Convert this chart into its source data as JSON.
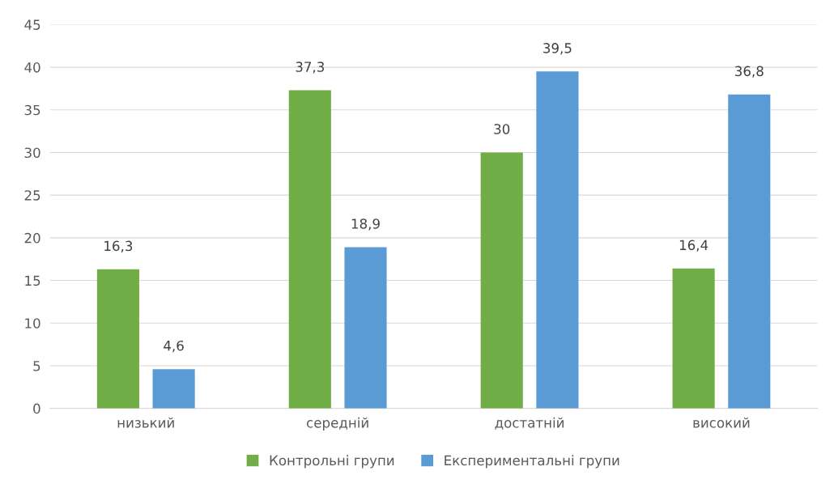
{
  "chart_data": {
    "type": "bar",
    "categories": [
      "низький",
      "середній",
      "достатній",
      "високий"
    ],
    "series": [
      {
        "name": "Контрольні групи",
        "color": "#70ad47",
        "values": [
          16.3,
          37.3,
          30,
          16.4
        ],
        "value_labels": [
          "16,3",
          "37,3",
          "30",
          "16,4"
        ]
      },
      {
        "name": "Експериментальні групи",
        "color": "#5b9bd5",
        "values": [
          4.6,
          18.9,
          39.5,
          36.8
        ],
        "value_labels": [
          "4,6",
          "18,9",
          "39,5",
          "36,8"
        ]
      }
    ],
    "ylim": [
      0,
      45
    ],
    "yticks": [
      0,
      5,
      10,
      15,
      20,
      25,
      30,
      35,
      40,
      45
    ],
    "grid": "y",
    "legend": "bottom"
  }
}
